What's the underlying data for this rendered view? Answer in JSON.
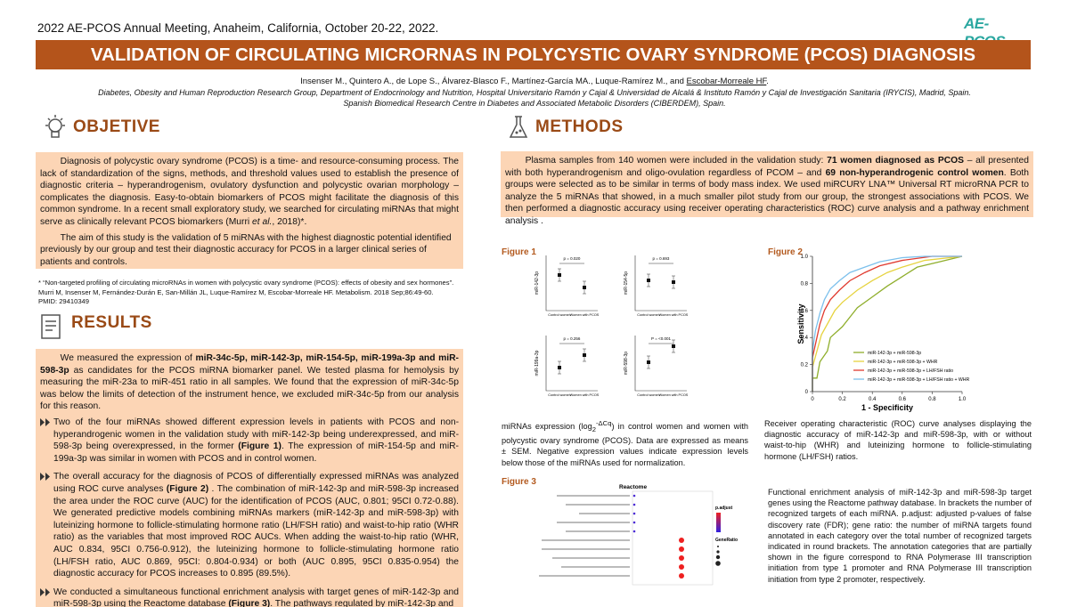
{
  "header": {
    "meeting": "2022 AE-PCOS Annual Meeting, Anaheim, California,  October 20-22, 2022.",
    "logo": "AE-PCOS",
    "title": "VALIDATION OF CIRCULATING MICRORNAS IN POLYCYSTIC OVARY SYNDROME (PCOS) DIAGNOSIS",
    "authors": [
      "Insenser M., Quintero A., de Lope S., Álvarez-Blasco F., Martínez-García MA., Luque-Ramírez M., and ",
      "Escobar-Morreale HF",
      "."
    ],
    "affiliations": [
      "Diabetes, Obesity and Human Reproduction Research Group, Department of Endocrinology and Nutrition, Hospital Universitario Ramón y Cajal & Universidad de Alcalá & Instituto Ramón y Cajal de Investigación Sanitaria (IRYCIS), Madrid, Spain.",
      "Spanish Biomedical Research Centre in Diabetes and Associated Metabolic Disorders (CIBERDEM), Spain."
    ]
  },
  "objective": {
    "heading": "OBJETIVE",
    "paragraphs": [
      [
        "Diagnosis of polycystic ovary syndrome (PCOS) is a time- and resource-consuming process. The lack of standardization of the signs, methods, and threshold values used to establish the presence of diagnostic criteria – hyperandrogenism, ovulatory dysfunction and polycystic ovarian morphology – complicates the diagnosis. Easy-to-obtain biomarkers of PCOS might facilitate the diagnosis of this common syndrome. In a recent small exploratory study, we searched for circulating miRNAs that might serve as clinically relevant PCOS biomarkers (Murri ",
        "et al.",
        ", 2018)*."
      ],
      [
        "The aim of this study is the validation of 5 miRNAs with the highest diagnostic potential identified previously by our group and test their diagnostic accuracy for PCOS in a larger clinical series of patients and controls."
      ]
    ],
    "footnote": [
      "* “Non-targeted profiling of circulating microRNAs in women with polycystic ovary syndrome (PCOS): effects of obesity and sex hormones”.",
      "Murri M, Insenser M, Fernández-Durán E, San-Millán JL, Luque-Ramírez M, Escobar-Morreale HF. Metabolism. 2018 Sep;86:49-60.",
      "PMID: 29410349"
    ]
  },
  "results": {
    "heading": "RESULTS",
    "intro": [
      "We measured the expression of ",
      "miR-34c-5p, miR-142-3p, miR-154-5p, miR-199a-3p and miR-598-3p",
      " as candidates for the PCOS miRNA biomarker panel. We tested plasma for hemolysis by measuring the miR-23a to miR-451 ratio in all samples. We found that the expression of miR-34c-5p was below the limits of detection of the instrument hence, we excluded miR-34c-5p from our analysis for this reason."
    ],
    "bullets": [
      [
        "Two of the four miRNAs showed different expression levels in patients with PCOS and non-hyperandrogenic women in the validation study with miR-142-3p being underexpressed, and miR-598-3p being overexpressed, in the former ",
        "(Figure 1)",
        ". The expression of miR-154-5p and miR-199a-3p was similar in women with PCOS and in control women."
      ],
      [
        "The overall accuracy for the diagnosis of PCOS of differentially expressed miRNAs was analyzed using ROC curve analyses ",
        "(Figure 2)",
        " . The combination of miR-142-3p and miR-598-3p increased the area under the ROC curve (AUC) for the identification of PCOS (AUC, 0.801; 95CI 0.72-0.88). We generated predictive models combining miRNAs markers (miR-142-3p and miR-598-3p) with luteinizing hormone to follicle-stimulating hormone  ratio (LH/FSH ratio) and waist-to-hip  ratio (WHR ratio) as the variables that most improved ROC AUCs. When adding the waist-to-hip ratio (WHR, AUC 0.834, 95CI 0.756-0.912), the luteinizing hormone to follicle-stimulating hormone ratio (LH/FSH ratio, AUC 0.869, 95CI: 0.804-0.934) or both (AUC 0.895, 95CI 0.835-0.954) the diagnostic accuracy for PCOS increases to 0.895 (89.5%)."
      ],
      [
        "We conducted a simultaneous functional enrichment analysis with target genes of miR-142-3p and miR-598-3p using the Reactome database ",
        "(Figure 3)",
        ". The pathways regulated by miR-142-3p and"
      ]
    ]
  },
  "methods": {
    "heading": "METHODS",
    "paragraph": [
      "Plasma samples from 140 women were included in the validation study: ",
      "71 women diagnosed as PCOS",
      " – all presented with both hyperandrogenism and oligo-ovulation regardless of PCOM – and ",
      "69 non-hyperandrogenic control women",
      ". Both groups were selected as to be similar in terms of body mass index. We used miRCURY LNA™ Universal RT microRNA PCR to analyze the 5 miRNAs that showed, in a much smaller pilot study from our group, the strongest associations with PCOS. We then performed a diagnostic accuracy using receiver operating characteristics (ROC) curve analysis and a pathway enrichment analysis ."
    ]
  },
  "figure1": {
    "label": "Figure 1",
    "panels": [
      {
        "mirna": "miR-142-3p",
        "p": "p = 0.020"
      },
      {
        "mirna": "miR-154-5p",
        "p": "p = 0.693"
      },
      {
        "mirna": "miR-199a-3p",
        "p": "p = 0.256"
      },
      {
        "mirna": "miR-598-3p",
        "p": "P = <0.001"
      }
    ],
    "groups": [
      "Control women",
      "Women with PCOS"
    ],
    "caption": [
      "miRNAs expression (log",
      "2",
      "-ΔCq",
      ") in control women and women with polycystic ovary syndrome (PCOS). Data are expressed as means ± SEM. Negative expression values indicate expression levels below those of the miRNAs used for normalization."
    ]
  },
  "figure2": {
    "label": "Figure 2",
    "ylabel": "Sensitivity",
    "xlabel": "1 - Specificity",
    "ticks": [
      0,
      {
        "value": 0.2,
        "label": "0.2"
      },
      {
        "value": 0.4,
        "label": "0.4"
      },
      {
        "value": 0.6,
        "label": "0.6"
      },
      {
        "value": 0.8,
        "label": "0.8"
      },
      {
        "value": 1,
        "label": "1.0"
      }
    ],
    "series": [
      {
        "name": "miR-142-3p + miR-598-3p",
        "color": "#8fae2c"
      },
      {
        "name": "miR-142-3p + miR-598-3p + WHR",
        "color": "#e6d340"
      },
      {
        "name": "miR-142-3p + miR-598-3p + LH/FSH ratio",
        "color": "#e03a2f"
      },
      {
        "name": "miR-142-3p + miR-598-3p + LH/FSH ratio + WHR",
        "color": "#7cc0ec"
      }
    ],
    "caption": "Receiver operating characteristic (ROC) curve analyses displaying the diagnostic accuracy of miR-142-3p and miR-598-3p, with or without waist-to-hip (WHR) and luteinizing hormone to follicle-stimulating hormone (LH/FSH) ratios."
  },
  "figure3": {
    "label": "Figure 3",
    "title": "Reactome",
    "legend_color": "p.adjust",
    "legend_size": "GeneRatio",
    "caption": "Functional enrichment analysis of miR-142-3p and miR-598-3p target genes using the Reactome pathway database. In brackets the number of recognized targets of each miRNA. p.adjust: adjusted p-values of false discovery rate (FDR); gene ratio: the number of miRNA targets found annotated in each category over the total number of recognized targets indicated in round brackets. The annotation categories that are partially shown in the figure correspond to RNA Polymerase III transcription initiation from type 1 promoter and RNA Polymerase III transcription initiation from type 2 promoter, respectively."
  }
}
